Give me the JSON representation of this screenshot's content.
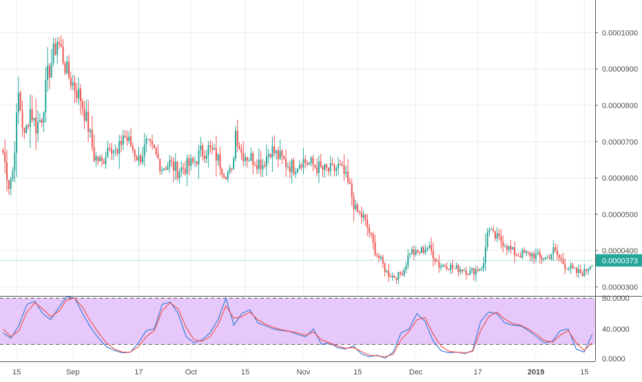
{
  "colors": {
    "up": "#26a69a",
    "down": "#ef5350",
    "grid": "#e4eef1",
    "axis_text": "#4a4a4a",
    "last_price_bg": "#26a69a",
    "stoch_k": "#3d7ed8",
    "stoch_d": "#ef5350",
    "stoch_band": "#e6c8fa",
    "divider": "#555555"
  },
  "chart_data": [
    {
      "type": "candlestick",
      "title": "",
      "y_ticks": [
        "0.0001000",
        "0.0000900",
        "0.0000800",
        "0.0000700",
        "0.0000600",
        "0.0000500",
        "0.0000400",
        "0.0000300"
      ],
      "y_tick_values": [
        0.0001,
        9e-05,
        8e-05,
        7e-05,
        6e-05,
        5e-05,
        4e-05,
        3e-05
      ],
      "ylim": [
        2.75e-05,
        0.000109
      ],
      "last_price_label": "0.0000373",
      "last_price": 3.73e-05,
      "grid": true,
      "x_ticks": [
        "15",
        "Sep",
        "17",
        "Oct",
        "15",
        "Nov",
        "15",
        "Dec",
        "17",
        "2019",
        "15"
      ],
      "x_tick_index": [
        7,
        36,
        70,
        97,
        125,
        155,
        183,
        213,
        245,
        275,
        300
      ],
      "num_candles": 305,
      "close_anchors": [
        [
          0,
          6.7e-05
        ],
        [
          3,
          5.8e-05
        ],
        [
          5,
          6.2e-05
        ],
        [
          8,
          8.3e-05
        ],
        [
          11,
          7.1e-05
        ],
        [
          14,
          7.9e-05
        ],
        [
          17,
          7.4e-05
        ],
        [
          20,
          7.7e-05
        ],
        [
          23,
          8.8e-05
        ],
        [
          26,
          9.4e-05
        ],
        [
          28,
          9.8e-05
        ],
        [
          30,
          9.5e-05
        ],
        [
          33,
          8.9e-05
        ],
        [
          36,
          8.6e-05
        ],
        [
          40,
          8.2e-05
        ],
        [
          44,
          7.4e-05
        ],
        [
          47,
          6.6e-05
        ],
        [
          51,
          6.4e-05
        ],
        [
          55,
          7e-05
        ],
        [
          59,
          6.6e-05
        ],
        [
          62,
          7.2e-05
        ],
        [
          66,
          6.9e-05
        ],
        [
          70,
          6.5e-05
        ],
        [
          74,
          6.9e-05
        ],
        [
          78,
          6.7e-05
        ],
        [
          82,
          6.3e-05
        ],
        [
          86,
          6.4e-05
        ],
        [
          90,
          6.2e-05
        ],
        [
          94,
          6.3e-05
        ],
        [
          98,
          6.4e-05
        ],
        [
          102,
          6.7e-05
        ],
        [
          106,
          6.8e-05
        ],
        [
          110,
          6.6e-05
        ],
        [
          114,
          6.2e-05
        ],
        [
          118,
          6.1e-05
        ],
        [
          120,
          7.3e-05
        ],
        [
          123,
          6.7e-05
        ],
        [
          126,
          6.6e-05
        ],
        [
          130,
          6.5e-05
        ],
        [
          134,
          6.4e-05
        ],
        [
          138,
          6.8e-05
        ],
        [
          142,
          6.6e-05
        ],
        [
          146,
          6.4e-05
        ],
        [
          150,
          6.3e-05
        ],
        [
          154,
          6.5e-05
        ],
        [
          158,
          6.4e-05
        ],
        [
          162,
          6.3e-05
        ],
        [
          166,
          6.2e-05
        ],
        [
          170,
          6.2e-05
        ],
        [
          173,
          6.3e-05
        ],
        [
          176,
          6.1e-05
        ],
        [
          179,
          5.7e-05
        ],
        [
          182,
          5.1e-05
        ],
        [
          186,
          4.9e-05
        ],
        [
          189,
          4.5e-05
        ],
        [
          192,
          4e-05
        ],
        [
          195,
          3.7e-05
        ],
        [
          198,
          3.4e-05
        ],
        [
          201,
          3.3e-05
        ],
        [
          204,
          3.3e-05
        ],
        [
          207,
          3.5e-05
        ],
        [
          210,
          4e-05
        ],
        [
          213,
          3.9e-05
        ],
        [
          216,
          4e-05
        ],
        [
          219,
          4.1e-05
        ],
        [
          222,
          3.9e-05
        ],
        [
          225,
          3.6e-05
        ],
        [
          229,
          3.6e-05
        ],
        [
          233,
          3.5e-05
        ],
        [
          237,
          3.5e-05
        ],
        [
          241,
          3.4e-05
        ],
        [
          245,
          3.5e-05
        ],
        [
          248,
          3.6e-05
        ],
        [
          250,
          4.6e-05
        ],
        [
          253,
          4.4e-05
        ],
        [
          256,
          4.3e-05
        ],
        [
          259,
          4.2e-05
        ],
        [
          262,
          4e-05
        ],
        [
          265,
          3.9e-05
        ],
        [
          269,
          3.9e-05
        ],
        [
          273,
          3.9e-05
        ],
        [
          277,
          3.8e-05
        ],
        [
          281,
          3.8e-05
        ],
        [
          284,
          4e-05
        ],
        [
          287,
          3.8e-05
        ],
        [
          290,
          3.6e-05
        ],
        [
          293,
          3.5e-05
        ],
        [
          296,
          3.4e-05
        ],
        [
          300,
          3.4e-05
        ],
        [
          304,
          3.7e-05
        ]
      ]
    },
    {
      "type": "line",
      "title": "",
      "y_ticks": [
        "80.0000",
        "40.0000",
        "0.0000"
      ],
      "y_tick_values": [
        80,
        40,
        0
      ],
      "ylim": [
        -2,
        82
      ],
      "band": [
        20,
        80
      ],
      "series": [
        {
          "name": "",
          "color_key": "stoch_k",
          "values": [
            35,
            28,
            45,
            72,
            76,
            60,
            52,
            68,
            82,
            80,
            60,
            42,
            28,
            17,
            12,
            9,
            10,
            22,
            38,
            40,
            72,
            75,
            60,
            30,
            22,
            26,
            35,
            52,
            80,
            45,
            60,
            65,
            48,
            44,
            40,
            38,
            37,
            33,
            30,
            40,
            20,
            22,
            16,
            14,
            18,
            8,
            4,
            6,
            2,
            10,
            35,
            40,
            60,
            50,
            25,
            12,
            9,
            10,
            8,
            12,
            50,
            62,
            60,
            48,
            45,
            44,
            38,
            30,
            22,
            24,
            38,
            40,
            14,
            10,
            33
          ]
        },
        {
          "name": "",
          "color_key": "stoch_d",
          "values": [
            40,
            30,
            38,
            62,
            74,
            66,
            56,
            63,
            78,
            80,
            68,
            50,
            35,
            22,
            14,
            10,
            10,
            17,
            30,
            38,
            64,
            74,
            66,
            42,
            26,
            24,
            30,
            45,
            70,
            54,
            56,
            62,
            52,
            46,
            42,
            39,
            37,
            35,
            32,
            36,
            26,
            22,
            18,
            15,
            16,
            11,
            6,
            5,
            4,
            7,
            26,
            37,
            52,
            55,
            34,
            18,
            11,
            10,
            9,
            11,
            38,
            56,
            62,
            53,
            47,
            45,
            40,
            33,
            25,
            23,
            32,
            38,
            22,
            12,
            22
          ]
        }
      ]
    }
  ]
}
